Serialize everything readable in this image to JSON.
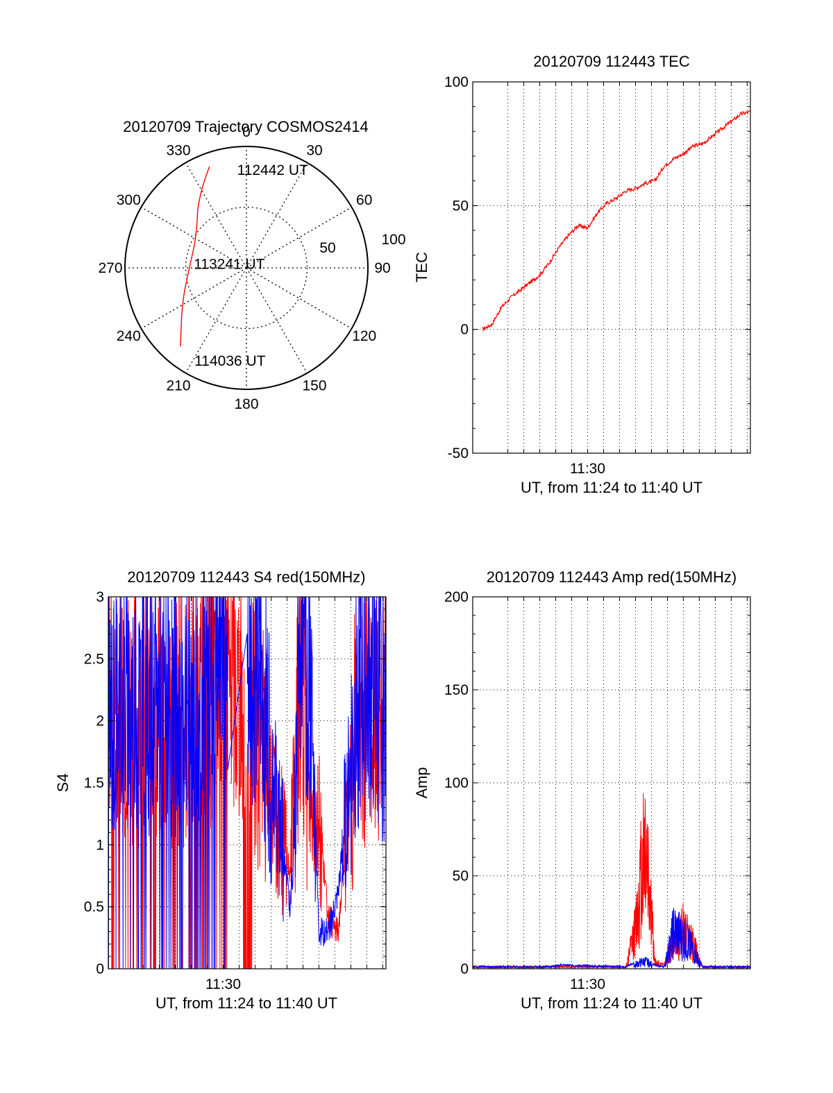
{
  "colors": {
    "red": "#ff0000",
    "blue": "#0000ff",
    "axis": "#000000",
    "grid": "#000000"
  },
  "chart_data": [
    {
      "type": "polar",
      "title": "20120709 Trajectory COSMOS2414",
      "angle_labels": [
        "0",
        "30",
        "60",
        "90",
        "120",
        "150",
        "180",
        "210",
        "240",
        "270",
        "300",
        "330"
      ],
      "ring_labels": [
        "50",
        "100"
      ],
      "grid": true,
      "series": [
        {
          "color": "#ff0000",
          "points": [
            {
              "az": 340,
              "el": 10
            },
            {
              "az": 326,
              "el": 26
            },
            {
              "az": 303,
              "el": 46
            },
            {
              "az": 272,
              "el": 48
            },
            {
              "az": 242,
              "el": 36
            },
            {
              "az": 220,
              "el": 14
            }
          ]
        }
      ],
      "annotations": [
        {
          "text": "112442 UT",
          "az": 15,
          "el": 15
        },
        {
          "text": "113241 UT",
          "az": 283,
          "el": 77
        },
        {
          "text": "114036 UT",
          "az": 190,
          "el": 20
        }
      ]
    },
    {
      "type": "line",
      "title": "20120709 112443 TEC",
      "xlabel": "UT, from 11:24 to 11:40 UT",
      "ylabel": "TEC",
      "xlim": [
        11.38,
        11.67
      ],
      "ylim": [
        -50,
        100
      ],
      "yticks": [
        "100",
        "50",
        "0",
        "-50"
      ],
      "xtick_labels": [
        {
          "x": 11.5,
          "label": "11:30"
        }
      ],
      "grid": true,
      "series": [
        {
          "color": "#ff0000",
          "x": [
            11.39,
            11.4,
            11.41,
            11.42,
            11.43,
            11.44,
            11.45,
            11.46,
            11.47,
            11.48,
            11.49,
            11.5,
            11.51,
            11.52,
            11.53,
            11.54,
            11.55,
            11.56,
            11.57,
            11.58,
            11.59,
            11.6,
            11.61,
            11.62,
            11.63,
            11.64,
            11.65,
            11.66,
            11.67
          ],
          "y": [
            0,
            2,
            9,
            13,
            16,
            19,
            22,
            27,
            33,
            38,
            42,
            41,
            47,
            51,
            53,
            56,
            57,
            59,
            60,
            66,
            69,
            71,
            74,
            75,
            78,
            81,
            84,
            87,
            88
          ]
        }
      ]
    },
    {
      "type": "line",
      "title": "20120709 112443 S4 red(150MHz)",
      "xlabel": "UT, from 11:24 to 11:40 UT",
      "ylabel": "S4",
      "xlim": [
        11.38,
        11.67
      ],
      "ylim": [
        0,
        3
      ],
      "yticks": [
        "3",
        "2.5",
        "2",
        "1.5",
        "1",
        "0.5",
        "0"
      ],
      "xtick_labels": [
        {
          "x": 11.5,
          "label": "11:30"
        }
      ],
      "grid": true,
      "series": [
        {
          "color": "#ff0000",
          "x": [
            11.38,
            11.4,
            11.42,
            11.44,
            11.46,
            11.48,
            11.5,
            11.52,
            11.54,
            11.555,
            11.57,
            11.58,
            11.59,
            11.6,
            11.61,
            11.62,
            11.64,
            11.66,
            11.67
          ],
          "y": [
            2.2,
            2.1,
            2.0,
            2.0,
            2.0,
            2.1,
            2.4,
            2.2,
            1.8,
            1.2,
            0.8,
            2.4,
            1.4,
            1.2,
            0.4,
            0.3,
            2.1,
            2.0,
            2.2
          ]
        },
        {
          "color": "#0000ff",
          "x": [
            11.38,
            11.4,
            11.42,
            11.44,
            11.46,
            11.48,
            11.5,
            11.52,
            11.54,
            11.555,
            11.57,
            11.58,
            11.59,
            11.6,
            11.61,
            11.62,
            11.64,
            11.66,
            11.67
          ],
          "y": [
            2.0,
            2.2,
            2.1,
            2.1,
            2.2,
            2.2,
            2.7,
            2.4,
            2.3,
            1.4,
            0.5,
            2.6,
            2.4,
            0.3,
            0.3,
            0.6,
            2.2,
            2.2,
            2.0
          ]
        }
      ]
    },
    {
      "type": "line",
      "title": "20120709 112443 Amp red(150MHz)",
      "xlabel": "UT, from 11:24 to 11:40 UT",
      "ylabel": "Amp",
      "xlim": [
        11.38,
        11.67
      ],
      "ylim": [
        0,
        200
      ],
      "yticks": [
        "200",
        "150",
        "100",
        "50",
        "0"
      ],
      "xtick_labels": [
        {
          "x": 11.5,
          "label": "11:30"
        }
      ],
      "grid": true,
      "series": [
        {
          "color": "#ff0000",
          "x": [
            11.38,
            11.54,
            11.55,
            11.56,
            11.565,
            11.57,
            11.58,
            11.59,
            11.6,
            11.61,
            11.62,
            11.67
          ],
          "y": [
            1,
            1,
            30,
            100,
            60,
            5,
            2,
            25,
            30,
            20,
            1,
            1
          ]
        },
        {
          "color": "#0000ff",
          "x": [
            11.38,
            11.46,
            11.47,
            11.54,
            11.56,
            11.57,
            11.58,
            11.59,
            11.6,
            11.61,
            11.62,
            11.67
          ],
          "y": [
            1,
            1,
            2,
            1,
            6,
            2,
            1,
            30,
            25,
            15,
            1,
            1
          ]
        }
      ]
    }
  ]
}
